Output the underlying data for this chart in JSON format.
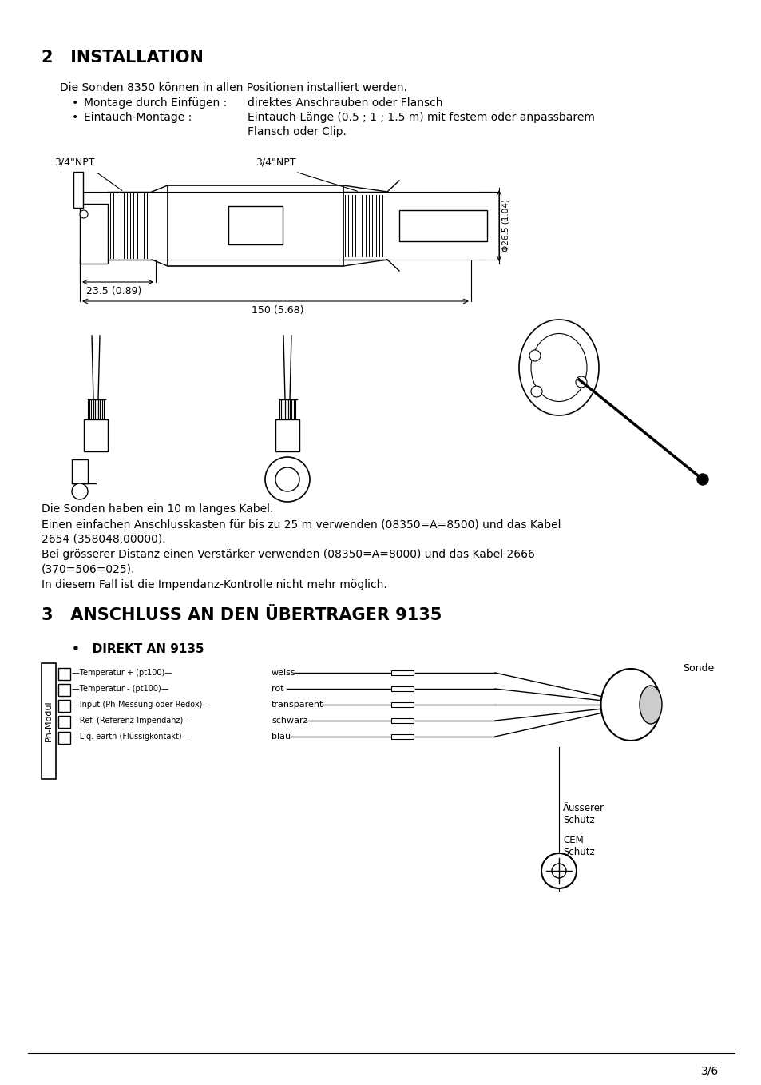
{
  "bg_color": "#ffffff",
  "text_color": "#000000",
  "title2": "2   INSTALLATION",
  "title3": "3   ANSCHLUSS AN DEN ÜBERTRAGER 9135",
  "section3_sub": "•   DIREKT AN 9135",
  "wire_labels_left": [
    "Temperatur + (pt100)",
    "Temperatur - (pt100)",
    "Input (Ph-Messung oder Redox)",
    "Ref. (Referenz-Impendanz)",
    "Liq. earth (Flüssigkontakt)"
  ],
  "wire_colors_text": [
    "weiss",
    "rot",
    "transparent",
    "schwarz",
    "blau"
  ],
  "sonde_label": "Sonde",
  "ph_modul_label": "Ph-Modul",
  "ausserer_label": "Äusserer\nSchutz",
  "cem_label": "CEM\nSchutz",
  "page_num": "3/6",
  "body_text1": "Die Sonden haben ein 10 m langes Kabel.",
  "body_text2": "Einen einfachen Anschlusskasten für bis zu 25 m verwenden (08350=A=8500) und das Kabel",
  "body_text2b": "2654 (358048,00000).",
  "body_text3": "Bei grösserer Distanz einen Verstärker verwenden (08350=A=8000) und das Kabel 2666",
  "body_text3b": "(370=506=025).",
  "body_text4": "In diesem Fall ist die Impendanz-Kontrolle nicht mehr möglich."
}
